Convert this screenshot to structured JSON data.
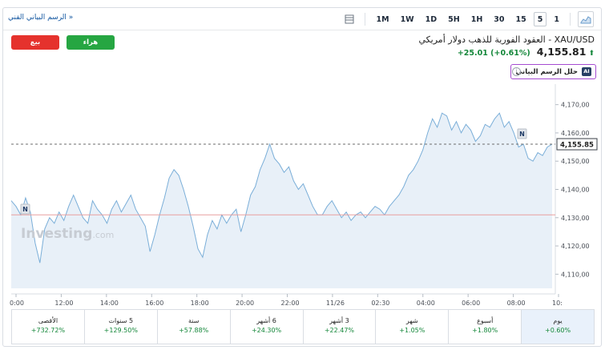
{
  "toolbar": {
    "technical_chart_link": "الرسم البياني الفني »",
    "timeframes": [
      "1M",
      "1W",
      "1D",
      "5H",
      "1H",
      "30",
      "15",
      "5",
      "1"
    ],
    "active_timeframe": "5"
  },
  "header": {
    "sell_label": "بيع",
    "buy_label": "هراء",
    "title": "XAU/USD - العقود الفورية للذهب دولار أمريكي",
    "price": "4,155.81",
    "change": "+25.01",
    "change_pct": "(+0.61%)",
    "ai_button_label": "حلل الرسم البياني",
    "ai_badge": "AI",
    "info_glyph": "i",
    "up_arrow_glyph": "⬆"
  },
  "chart_data": {
    "type": "area",
    "watermark": "Investing",
    "watermark_suffix": ".com",
    "last_price_label": "4,155.85",
    "reference_price": 4131,
    "ylim": [
      4105,
      4175
    ],
    "y_ticks": [
      "4,170,00",
      "4,160,00",
      "4,150,00",
      "4,140,00",
      "4,130,00",
      "4,120,00",
      "4,110,00"
    ],
    "y_tick_values": [
      4170,
      4160,
      4150,
      4140,
      4130,
      4120,
      4110
    ],
    "x_ticks": [
      "0:00",
      "12:00",
      "14:00",
      "16:00",
      "18:00",
      "20:00",
      "22:00",
      "11/26",
      "02:30",
      "04:00",
      "06:00",
      "08:00",
      "10:"
    ],
    "news_marker": "N",
    "values": [
      4136,
      4134,
      4131,
      4137,
      4132,
      4121,
      4114,
      4126,
      4130,
      4128,
      4132,
      4129,
      4134,
      4138,
      4134,
      4130,
      4128,
      4136,
      4133,
      4131,
      4128,
      4133,
      4136,
      4132,
      4135,
      4138,
      4133,
      4130,
      4127,
      4118,
      4124,
      4131,
      4137,
      4144,
      4147,
      4145,
      4140,
      4134,
      4127,
      4119,
      4116,
      4124,
      4129,
      4126,
      4131,
      4128,
      4131,
      4133,
      4125,
      4131,
      4138,
      4141,
      4147,
      4151,
      4156,
      4151,
      4149,
      4146,
      4148,
      4143,
      4140,
      4142,
      4138,
      4134,
      4131,
      4131,
      4134,
      4136,
      4133,
      4130,
      4132,
      4129,
      4131,
      4132,
      4130,
      4132,
      4134,
      4133,
      4131,
      4134,
      4136,
      4138,
      4141,
      4145,
      4147,
      4150,
      4154,
      4160,
      4165,
      4162,
      4167,
      4166,
      4161,
      4164,
      4160,
      4163,
      4161,
      4157,
      4159,
      4163,
      4162,
      4165,
      4167,
      4162,
      4164,
      4160,
      4155,
      4156,
      4151,
      4150,
      4153,
      4152,
      4155,
      4156
    ]
  },
  "performance": [
    {
      "label": "يوم",
      "value": "+0.60%"
    },
    {
      "label": "أسبوع",
      "value": "+1.80%"
    },
    {
      "label": "شهر",
      "value": "+1.05%"
    },
    {
      "label": "3 أشهر",
      "value": "+22.47%"
    },
    {
      "label": "6 أشهر",
      "value": "+24.30%"
    },
    {
      "label": "سنة",
      "value": "+57.88%"
    },
    {
      "label": "5 سنوات",
      "value": "+129.50%"
    },
    {
      "label": "الأقصى",
      "value": "+732.72%"
    }
  ],
  "colors": {
    "line": "#7aaed8",
    "area": "#e8f0f8",
    "reference_line": "#e8a0a0",
    "up": "#14873a",
    "sell": "#e5322d",
    "buy": "#26a642"
  }
}
